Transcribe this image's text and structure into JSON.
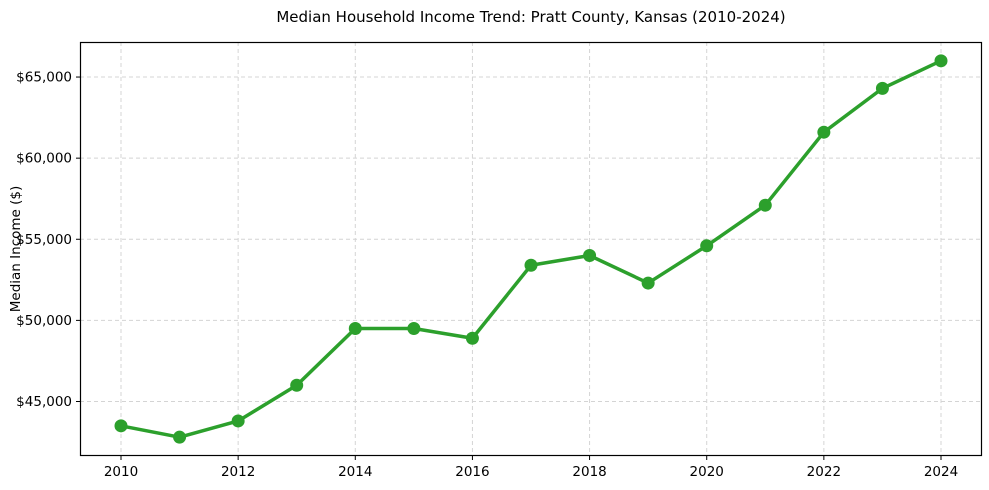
{
  "chart_data": {
    "type": "line",
    "title": "Median Household Income Trend: Pratt County, Kansas (2010-2024)",
    "xlabel": "",
    "ylabel": "Median Income ($)",
    "x": [
      2010,
      2011,
      2012,
      2013,
      2014,
      2015,
      2016,
      2017,
      2018,
      2019,
      2020,
      2021,
      2022,
      2023,
      2024
    ],
    "series": [
      {
        "name": "Median Household Income",
        "values": [
          43500,
          42800,
          43800,
          46000,
          49500,
          49500,
          48900,
          53400,
          54000,
          52300,
          54600,
          57100,
          61600,
          64300,
          66000
        ],
        "color": "#2ca02c",
        "marker": "circle",
        "marker_size": 13,
        "line_width": 3.5
      }
    ],
    "xlim": [
      2009.3,
      2024.7
    ],
    "ylim": [
      41640,
      67160
    ],
    "x_ticks": [
      2010,
      2012,
      2014,
      2016,
      2018,
      2020,
      2022,
      2024
    ],
    "x_tick_labels": [
      "2010",
      "2012",
      "2014",
      "2016",
      "2018",
      "2020",
      "2022",
      "2024"
    ],
    "y_ticks": [
      45000,
      50000,
      55000,
      60000,
      65000
    ],
    "y_tick_labels": [
      "$45,000",
      "$50,000",
      "$55,000",
      "$60,000",
      "$65,000"
    ],
    "grid": "both",
    "grid_style": "dashed",
    "grid_color": "#d4d4d4",
    "axis_color": "#000000",
    "plot_background": "#ffffff",
    "legend": "none"
  }
}
